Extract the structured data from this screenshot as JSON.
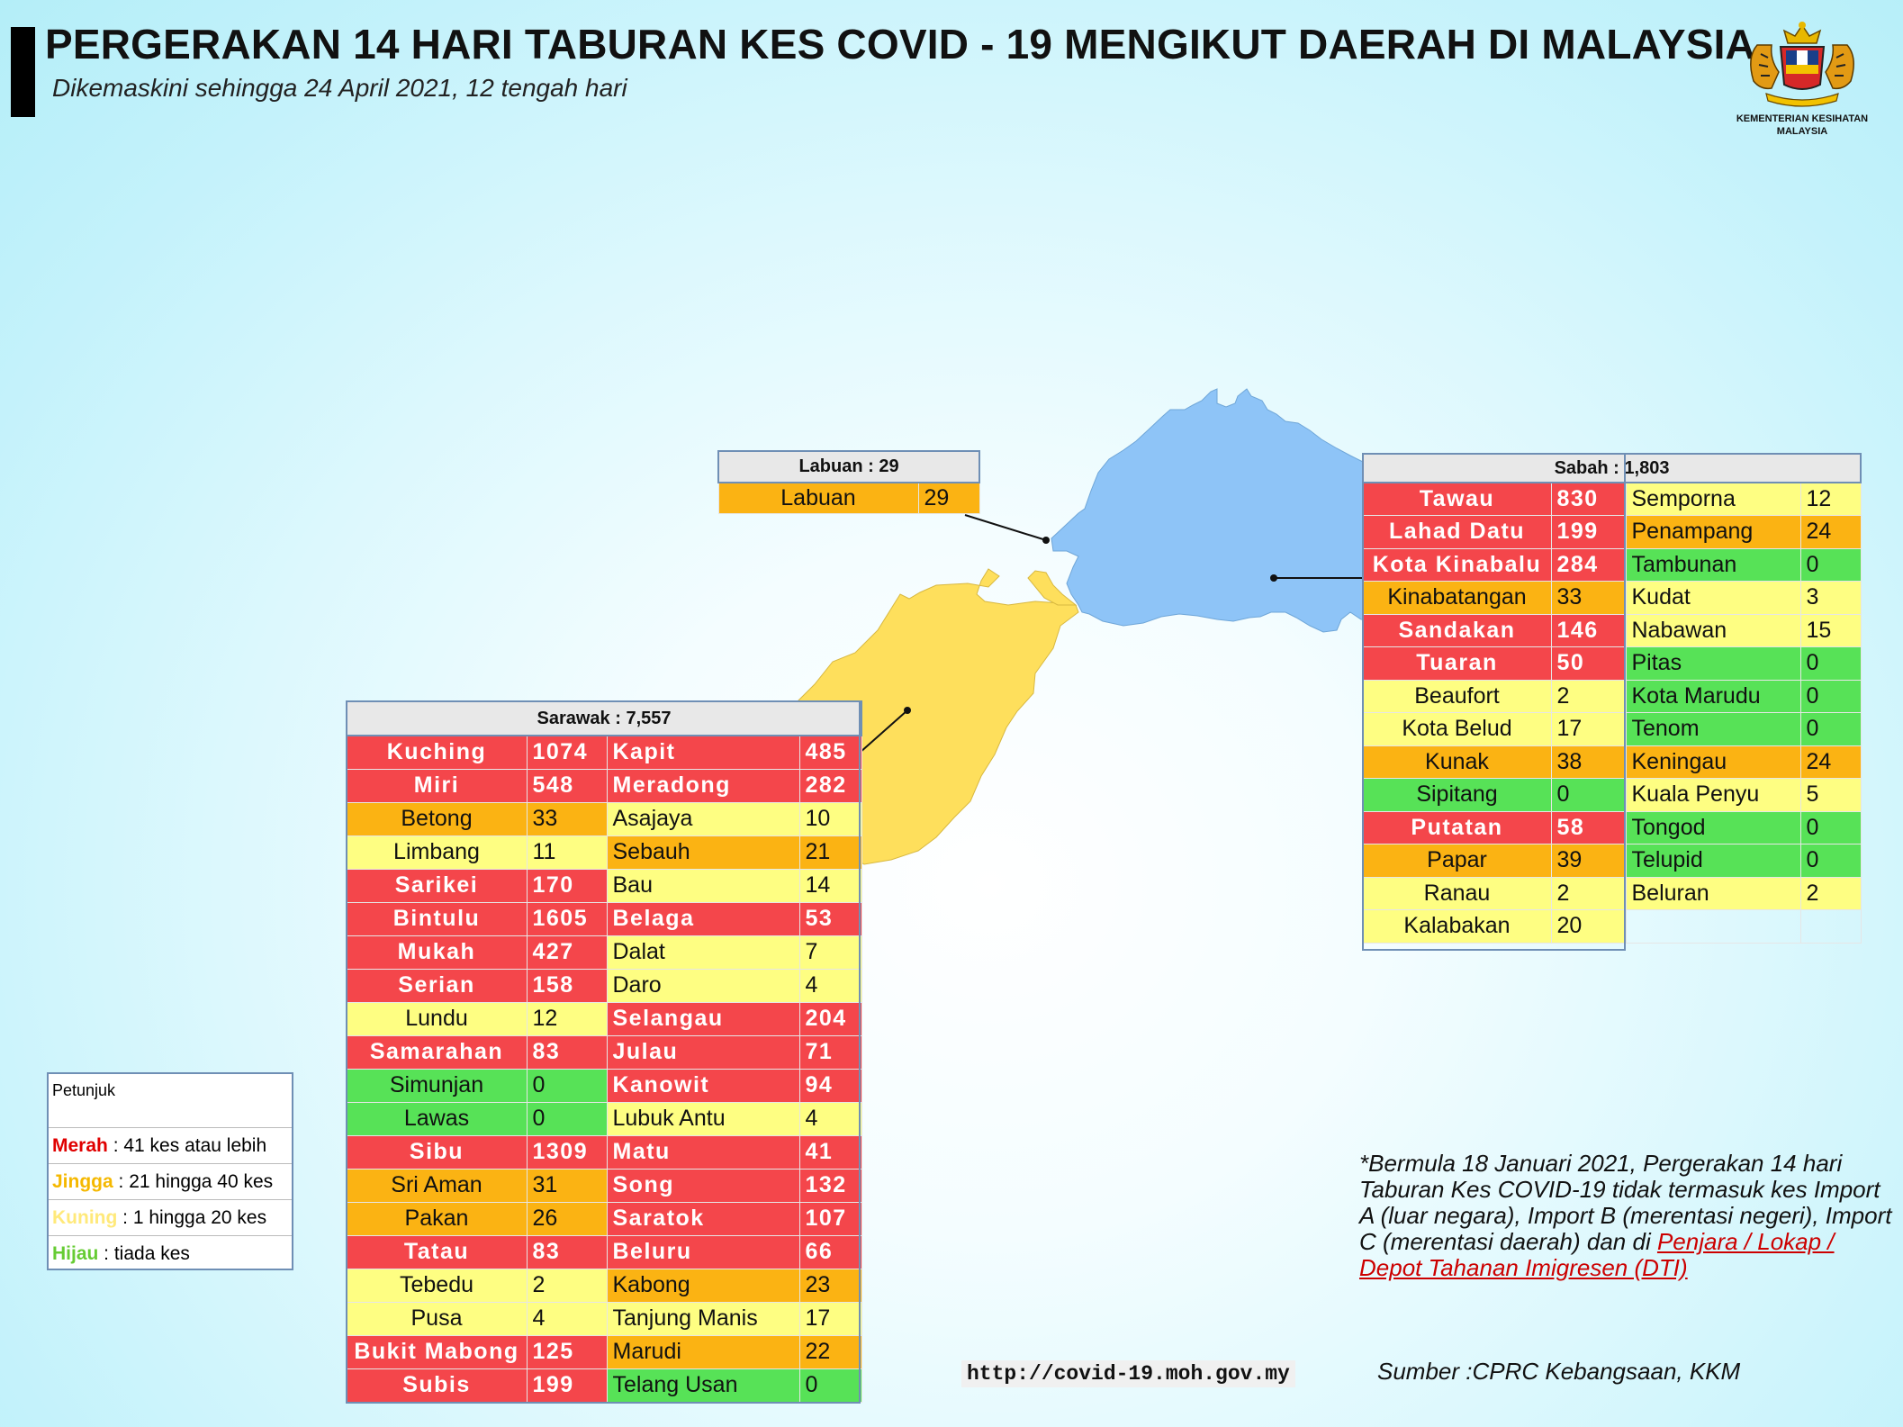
{
  "header": {
    "title": "PERGERAKAN 14 HARI TABURAN KES COVID - 19 MENGIKUT DAERAH DI MALAYSIA",
    "subtitle": "Dikemaskini sehingga 24 April 2021, 12 tengah hari",
    "logo_text_1": "KEMENTERIAN KESIHATAN",
    "logo_text_2": "MALAYSIA"
  },
  "colors": {
    "red": "#f4464b",
    "orange": "#fbb313",
    "yellow": "#fefe82",
    "green": "#57e257",
    "sabah_map": "#8ec4f7",
    "sarawak_map": "#fedf5c"
  },
  "labuan": {
    "header": "Labuan : 29",
    "rows": [
      {
        "name": "Labuan",
        "value": "29",
        "level": "or"
      }
    ]
  },
  "sabah": {
    "header": "Sabah : 1,803",
    "left": [
      {
        "name": "Tawau",
        "value": "830",
        "level": "red"
      },
      {
        "name": "Lahad Datu",
        "value": "199",
        "level": "red"
      },
      {
        "name": "Kota Kinabalu",
        "value": "284",
        "level": "red"
      },
      {
        "name": "Kinabatangan",
        "value": "33",
        "level": "or"
      },
      {
        "name": "Sandakan",
        "value": "146",
        "level": "red"
      },
      {
        "name": "Tuaran",
        "value": "50",
        "level": "red"
      },
      {
        "name": "Beaufort",
        "value": "2",
        "level": "ye"
      },
      {
        "name": "Kota Belud",
        "value": "17",
        "level": "ye"
      },
      {
        "name": "Kunak",
        "value": "38",
        "level": "or"
      },
      {
        "name": "Sipitang",
        "value": "0",
        "level": "gr"
      },
      {
        "name": "Putatan",
        "value": "58",
        "level": "red"
      },
      {
        "name": "Papar",
        "value": "39",
        "level": "or"
      },
      {
        "name": "Ranau",
        "value": "2",
        "level": "ye"
      },
      {
        "name": "Kalabakan",
        "value": "20",
        "level": "ye"
      }
    ],
    "right": [
      {
        "name": "Semporna",
        "value": "12",
        "level": "ye"
      },
      {
        "name": "Penampang",
        "value": "24",
        "level": "or"
      },
      {
        "name": "Tambunan",
        "value": "0",
        "level": "gr"
      },
      {
        "name": "Kudat",
        "value": "3",
        "level": "ye"
      },
      {
        "name": "Nabawan",
        "value": "15",
        "level": "ye"
      },
      {
        "name": "Pitas",
        "value": "0",
        "level": "gr"
      },
      {
        "name": "Kota Marudu",
        "value": "0",
        "level": "gr"
      },
      {
        "name": "Tenom",
        "value": "0",
        "level": "gr"
      },
      {
        "name": "Keningau",
        "value": "24",
        "level": "or"
      },
      {
        "name": "Kuala Penyu",
        "value": "5",
        "level": "ye"
      },
      {
        "name": "Tongod",
        "value": "0",
        "level": "gr"
      },
      {
        "name": "Telupid",
        "value": "0",
        "level": "gr"
      },
      {
        "name": "Beluran",
        "value": "2",
        "level": "ye"
      },
      {
        "name": "",
        "value": "",
        "level": "bl"
      }
    ]
  },
  "sarawak": {
    "header": "Sarawak : 7,557",
    "left": [
      {
        "name": "Kuching",
        "value": "1074",
        "level": "red"
      },
      {
        "name": "Miri",
        "value": "548",
        "level": "red"
      },
      {
        "name": "Betong",
        "value": "33",
        "level": "or"
      },
      {
        "name": "Limbang",
        "value": "11",
        "level": "ye"
      },
      {
        "name": "Sarikei",
        "value": "170",
        "level": "red"
      },
      {
        "name": "Bintulu",
        "value": "1605",
        "level": "red"
      },
      {
        "name": "Mukah",
        "value": "427",
        "level": "red"
      },
      {
        "name": "Serian",
        "value": "158",
        "level": "red"
      },
      {
        "name": "Lundu",
        "value": "12",
        "level": "ye"
      },
      {
        "name": "Samarahan",
        "value": "83",
        "level": "red"
      },
      {
        "name": "Simunjan",
        "value": "0",
        "level": "gr"
      },
      {
        "name": "Lawas",
        "value": "0",
        "level": "gr"
      },
      {
        "name": "Sibu",
        "value": "1309",
        "level": "red"
      },
      {
        "name": "Sri Aman",
        "value": "31",
        "level": "or"
      },
      {
        "name": "Pakan",
        "value": "26",
        "level": "or"
      },
      {
        "name": "Tatau",
        "value": "83",
        "level": "red"
      },
      {
        "name": "Tebedu",
        "value": "2",
        "level": "ye"
      },
      {
        "name": "Pusa",
        "value": "4",
        "level": "ye"
      },
      {
        "name": "Bukit Mabong",
        "value": "125",
        "level": "red"
      },
      {
        "name": "Subis",
        "value": "199",
        "level": "red"
      }
    ],
    "right": [
      {
        "name": "Kapit",
        "value": "485",
        "level": "red"
      },
      {
        "name": "Meradong",
        "value": "282",
        "level": "red"
      },
      {
        "name": "Asajaya",
        "value": "10",
        "level": "ye"
      },
      {
        "name": "Sebauh",
        "value": "21",
        "level": "or"
      },
      {
        "name": "Bau",
        "value": "14",
        "level": "ye"
      },
      {
        "name": "Belaga",
        "value": "53",
        "level": "red"
      },
      {
        "name": "Dalat",
        "value": "7",
        "level": "ye"
      },
      {
        "name": "Daro",
        "value": "4",
        "level": "ye"
      },
      {
        "name": "Selangau",
        "value": "204",
        "level": "red"
      },
      {
        "name": "Julau",
        "value": "71",
        "level": "red"
      },
      {
        "name": "Kanowit",
        "value": "94",
        "level": "red"
      },
      {
        "name": "Lubuk Antu",
        "value": "4",
        "level": "ye"
      },
      {
        "name": "Matu",
        "value": "41",
        "level": "red"
      },
      {
        "name": "Song",
        "value": "132",
        "level": "red"
      },
      {
        "name": "Saratok",
        "value": "107",
        "level": "red"
      },
      {
        "name": "Beluru",
        "value": "66",
        "level": "red"
      },
      {
        "name": "Kabong",
        "value": "23",
        "level": "or"
      },
      {
        "name": "Tanjung Manis",
        "value": "17",
        "level": "ye"
      },
      {
        "name": "Marudi",
        "value": "22",
        "level": "or"
      },
      {
        "name": "Telang Usan",
        "value": "0",
        "level": "gr"
      }
    ]
  },
  "legend": {
    "title": "Petunjuk",
    "items": [
      {
        "key": "Merah",
        "text": " : 41 kes atau lebih",
        "color": "#e00000"
      },
      {
        "key": "Jingga",
        "text": " : 21 hingga 40 kes",
        "color": "#f5b800"
      },
      {
        "key": "Kuning",
        "text": " : 1 hingga 20 kes",
        "color": "#ffe97a"
      },
      {
        "key": "Hijau",
        "text": " : tiada kes",
        "color": "#66cc33"
      }
    ]
  },
  "footnote": {
    "text": "*Bermula 18 Januari 2021, Pergerakan 14 hari Taburan Kes COVID-19 tidak termasuk kes Import A (luar negara), Import B (merentasi negeri), Import C (merentasi daerah) dan di",
    "link": "Penjara / Lokap / Depot Tahanan Imigresen (DTI)"
  },
  "url": "http://covid-19.moh.gov.my",
  "source": "Sumber :CPRC Kebangsaan,  KKM"
}
